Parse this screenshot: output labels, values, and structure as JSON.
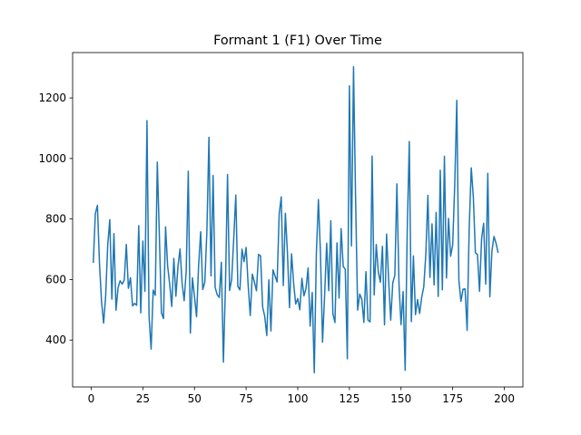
{
  "chart_data": {
    "type": "line",
    "title": "Formant 1 (F1) Over Time",
    "xlabel": "",
    "ylabel": "",
    "xlim": [
      -9,
      209
    ],
    "ylim": [
      245,
      1350
    ],
    "xticks": [
      0,
      25,
      50,
      75,
      100,
      125,
      150,
      175,
      200
    ],
    "yticks": [
      400,
      600,
      800,
      1000,
      1200
    ],
    "grid": false,
    "line_color": "#1f77b4",
    "series": [
      {
        "name": "F1",
        "x_start": 1,
        "x_step": 1,
        "values": [
          655,
          818,
          845,
          653,
          527,
          456,
          545,
          715,
          798,
          535,
          752,
          499,
          573,
          596,
          585,
          598,
          716,
          571,
          606,
          513,
          521,
          515,
          778,
          490,
          727,
          561,
          1125,
          479,
          370,
          565,
          548,
          988,
          743,
          490,
          471,
          774,
          645,
          584,
          511,
          670,
          545,
          643,
          701,
          588,
          530,
          629,
          958,
          423,
          606,
          543,
          477,
          646,
          758,
          567,
          591,
          759,
          1070,
          612,
          944,
          574,
          550,
          541,
          657,
          327,
          583,
          947,
          564,
          600,
          736,
          879,
          577,
          566,
          700,
          659,
          706,
          580,
          481,
          618,
          592,
          563,
          683,
          678,
          509,
          479,
          415,
          599,
          430,
          632,
          612,
          592,
          816,
          873,
          580,
          819,
          689,
          507,
          685,
          588,
          519,
          537,
          500,
          604,
          546,
          571,
          638,
          446,
          557,
          292,
          685,
          864,
          685,
          393,
          548,
          720,
          563,
          794,
          487,
          458,
          721,
          539,
          768,
          643,
          634,
          338,
          1240,
          711,
          1303,
          863,
          499,
          552,
          535,
          458,
          626,
          466,
          460,
          1008,
          549,
          716,
          625,
          591,
          710,
          450,
          750,
          599,
          466,
          589,
          614,
          916,
          587,
          451,
          560,
          300,
          763,
          1056,
          461,
          678,
          484,
          534,
          488,
          541,
          576,
          683,
          878,
          607,
          784,
          582,
          822,
          544,
          961,
          566,
          1007,
          605,
          802,
          677,
          714,
          913,
          1192,
          598,
          528,
          568,
          569,
          432,
          770,
          969,
          873,
          688,
          683,
          561,
          735,
          786,
          585,
          951,
          543,
          694,
          742,
          720,
          688
        ]
      }
    ]
  }
}
